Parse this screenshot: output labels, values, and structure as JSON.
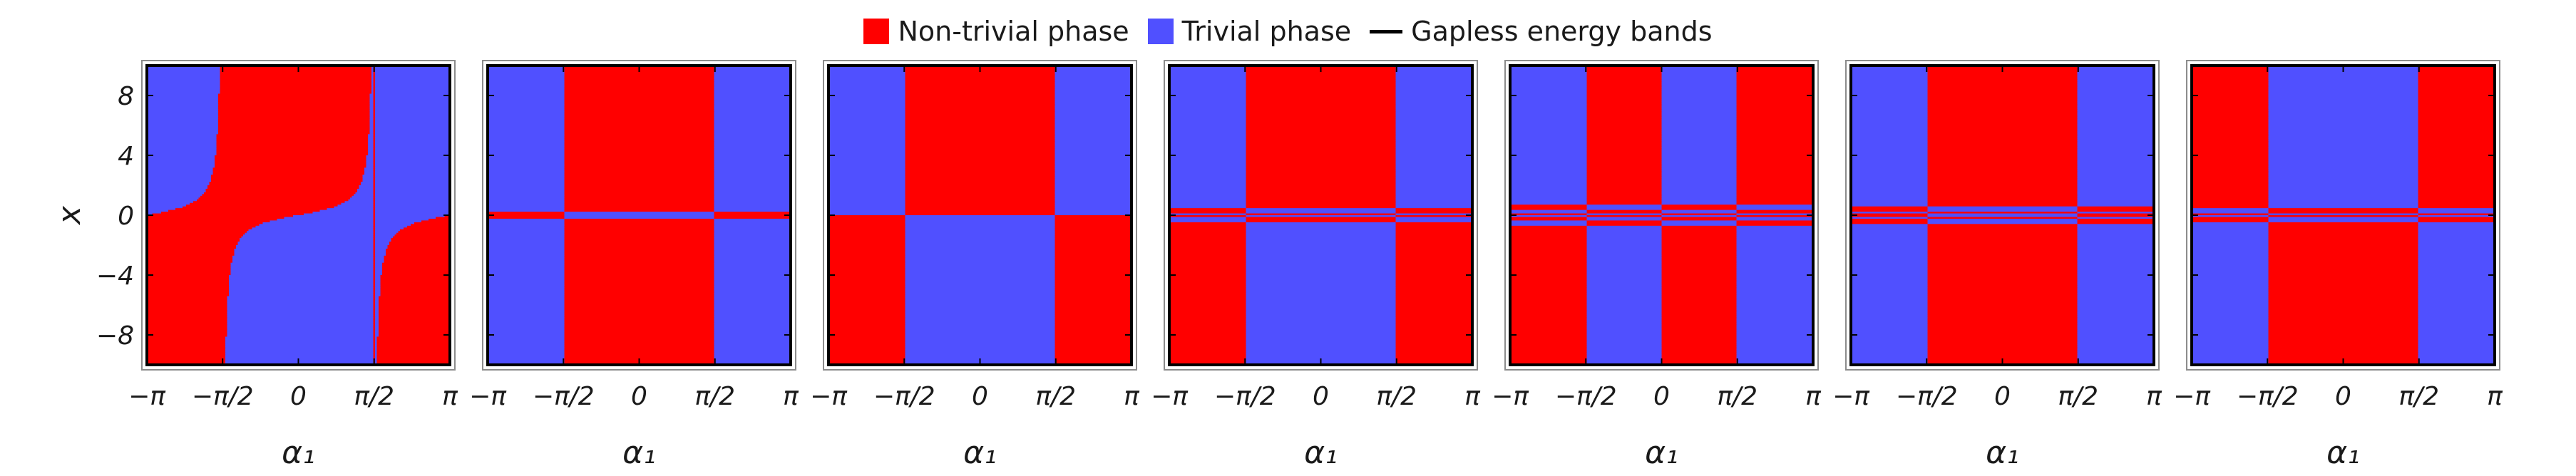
{
  "legend": {
    "nontrivial_label": "Non-trivial phase",
    "trivial_label": "Trivial phase",
    "gapless_label": "Gapless energy bands"
  },
  "colors": {
    "nontrivial": "#ff0000",
    "trivial": "#5050ff",
    "gapless": "#000000",
    "frame": "#8c8c8c"
  },
  "chart_data": [
    {
      "type": "heatmap",
      "panel": 1,
      "xlabel": "α₁",
      "ylabel": "x",
      "xlim": [
        -3.1416,
        3.1416
      ],
      "ylim": [
        -10,
        10
      ],
      "xticks": [
        "−π",
        "−π/2",
        "0",
        "π/2",
        "π"
      ],
      "yticks": [
        -8,
        -4,
        0,
        4,
        8
      ],
      "model": "checker",
      "n": 1,
      "k": 0.6,
      "alpha0": 1.5708,
      "offset": 0
    },
    {
      "type": "heatmap",
      "panel": 2,
      "xlabel": "α₁",
      "ylabel": "",
      "xlim": [
        -3.1416,
        3.1416
      ],
      "ylim": [
        -10,
        10
      ],
      "xticks": [
        "−π",
        "−π/2",
        "0",
        "π/2",
        "π"
      ],
      "yticks": [
        -8,
        -4,
        0,
        4,
        8
      ],
      "model": "stack",
      "n": 3,
      "k": 0.5,
      "alpha0": 0,
      "offset": 0
    },
    {
      "type": "heatmap",
      "panel": 3,
      "xlabel": "α₁",
      "ylabel": "",
      "xlim": [
        -3.1416,
        3.1416
      ],
      "ylim": [
        -10,
        10
      ],
      "xticks": [
        "−π",
        "−π/2",
        "0",
        "π/2",
        "π"
      ],
      "yticks": [
        -8,
        -4,
        0,
        4,
        8
      ],
      "model": "stack",
      "n": 2,
      "k": 0.5,
      "alpha0": 0,
      "offset": 0
    },
    {
      "type": "heatmap",
      "panel": 4,
      "xlabel": "α₁",
      "ylabel": "",
      "xlim": [
        -3.1416,
        3.1416
      ],
      "ylim": [
        -10,
        10
      ],
      "xticks": [
        "−π",
        "−π/2",
        "0",
        "π/2",
        "π"
      ],
      "yticks": [
        -8,
        -4,
        0,
        4,
        8
      ],
      "model": "stack",
      "n": 6,
      "k": 0.3,
      "alpha0": 0,
      "offset": 0
    },
    {
      "type": "heatmap",
      "panel": 5,
      "xlabel": "α₁",
      "ylabel": "",
      "xlim": [
        -3.1416,
        3.1416
      ],
      "ylim": [
        -10,
        10
      ],
      "xticks": [
        "−π",
        "−π/2",
        "0",
        "π/2",
        "π"
      ],
      "yticks": [
        -8,
        -4,
        0,
        4,
        8
      ],
      "model": "quad",
      "n": 4,
      "k": 0.3,
      "alpha0": 0,
      "offset": 0
    },
    {
      "type": "heatmap",
      "panel": 6,
      "xlabel": "α₁",
      "ylabel": "",
      "xlim": [
        -3.1416,
        3.1416
      ],
      "ylim": [
        -10,
        10
      ],
      "xticks": [
        "−π",
        "−π/2",
        "0",
        "π/2",
        "π"
      ],
      "yticks": [
        -8,
        -4,
        0,
        4,
        8
      ],
      "model": "stack",
      "n": 9,
      "k": 0.22,
      "alpha0": 0,
      "offset": 0
    },
    {
      "type": "heatmap",
      "panel": 7,
      "xlabel": "α₁",
      "ylabel": "",
      "xlim": [
        -3.1416,
        3.1416
      ],
      "ylim": [
        -10,
        10
      ],
      "xticks": [
        "−π",
        "−π/2",
        "0",
        "π/2",
        "π"
      ],
      "yticks": [
        -8,
        -4,
        0,
        4,
        8
      ],
      "model": "stack",
      "n": 6,
      "k": 0.28,
      "alpha0": 0,
      "offset": 1
    }
  ]
}
